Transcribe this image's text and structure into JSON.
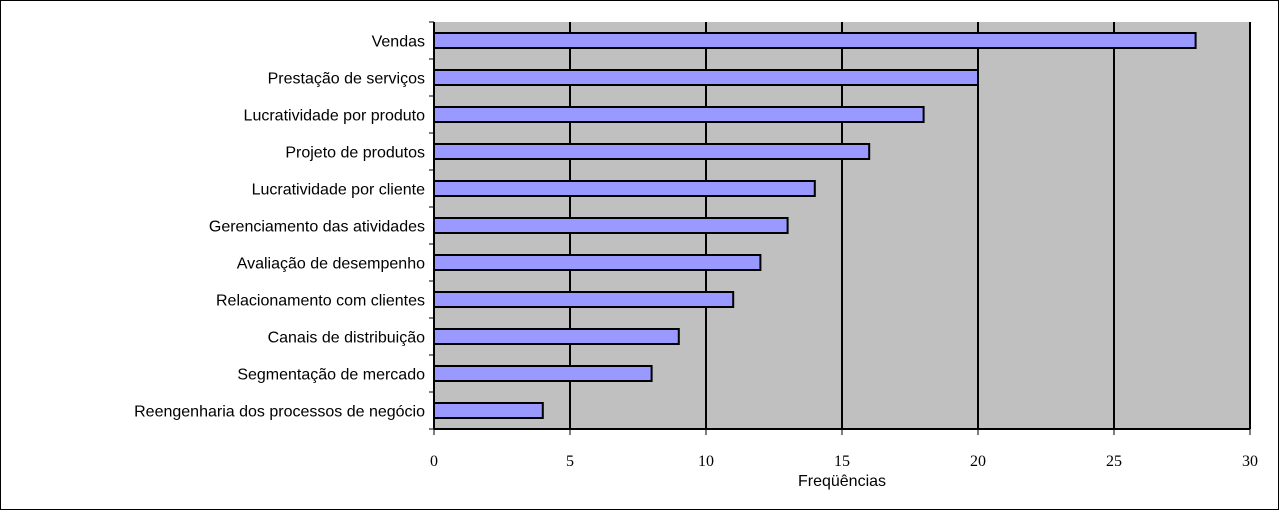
{
  "chart_data": {
    "type": "bar",
    "orientation": "horizontal",
    "categories": [
      "Vendas",
      "Prestação de serviços",
      "Lucratividade por produto",
      "Projeto de produtos",
      "Lucratividade por cliente",
      "Gerenciamento das atividades",
      "Avaliação de desempenho",
      "Relacionamento com clientes",
      "Canais de distribuição",
      "Segmentação de mercado",
      "Reengenharia dos processos de negócio"
    ],
    "values": [
      28,
      20,
      18,
      16,
      14,
      13,
      12,
      11,
      9,
      8,
      4
    ],
    "xlabel": "Freqüências",
    "ylabel": "",
    "xlim": [
      0,
      30
    ],
    "xticks": [
      "0",
      "5",
      "10",
      "15",
      "20",
      "25",
      "30"
    ],
    "grid": "vertical",
    "legend": "none",
    "colors": {
      "bar_fill": "#9999ff",
      "bar_stroke": "#000000",
      "plot_background": "#c0c0c0",
      "gridline": "#000000"
    }
  }
}
